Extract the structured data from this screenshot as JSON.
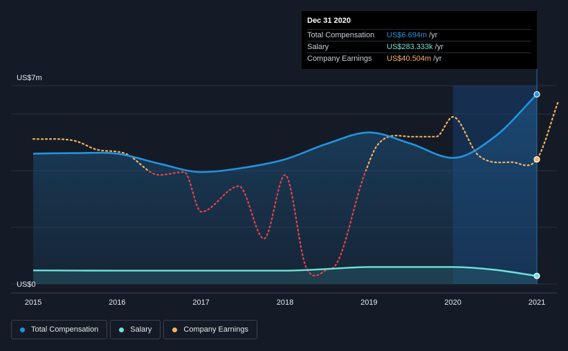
{
  "tooltip": {
    "date": "Dec 31 2020",
    "rows": [
      {
        "label": "Total Compensation",
        "value": "US$6.694m",
        "unit": "/yr",
        "color": "#2394df"
      },
      {
        "label": "Salary",
        "value": "US$283.333k",
        "unit": "/yr",
        "color": "#6fe3da"
      },
      {
        "label": "Company Earnings",
        "value": "US$40.504m",
        "unit": "/yr",
        "color": "#f5b461"
      }
    ]
  },
  "legend": [
    {
      "label": "Total Compensation",
      "color": "#2394df"
    },
    {
      "label": "Salary",
      "color": "#6fe3da"
    },
    {
      "label": "Company Earnings",
      "color": "#f5b461"
    }
  ],
  "chart_data": {
    "type": "line",
    "title": "",
    "xlabel": "",
    "ylabel": "",
    "y_axis_labels": [
      "US$7m",
      "US$0"
    ],
    "ylim": [
      0,
      7
    ],
    "x_tick_labels": [
      "2015",
      "2016",
      "2017",
      "2018",
      "2019",
      "2020",
      "2021"
    ],
    "xlim": [
      2015,
      2021.25
    ],
    "highlight_range": [
      2020,
      2021
    ],
    "series": [
      {
        "name": "Total Compensation",
        "color": "#2394df",
        "unit": "US$m",
        "x": [
          2015,
          2015.5,
          2016,
          2016.5,
          2017,
          2017.5,
          2018,
          2018.5,
          2019,
          2019.5,
          2020,
          2020.5,
          2021
        ],
        "y": [
          4.6,
          4.62,
          4.6,
          4.25,
          3.95,
          4.1,
          4.4,
          4.95,
          5.35,
          4.95,
          4.45,
          5.2,
          6.694
        ]
      },
      {
        "name": "Salary",
        "color": "#6fe3da",
        "unit": "US$m",
        "x": [
          2015,
          2016,
          2017,
          2018,
          2018.5,
          2019,
          2020,
          2020.5,
          2021
        ],
        "y": [
          0.48,
          0.47,
          0.47,
          0.47,
          0.53,
          0.6,
          0.6,
          0.5,
          0.283
        ]
      },
      {
        "name": "Company Earnings",
        "color": "#f5b461",
        "negative_color": "#e5434c",
        "unit": "US$m (scaled)",
        "x": [
          2015,
          2015.5,
          2015.75,
          2016.1,
          2016.5,
          2016.8,
          2017,
          2017.45,
          2017.75,
          2018,
          2018.25,
          2018.55,
          2018.95,
          2019.1,
          2019.5,
          2019.8,
          2020,
          2020.3,
          2020.7,
          2021,
          2021.25
        ],
        "y": [
          5.12,
          5.05,
          4.75,
          4.6,
          3.85,
          3.95,
          2.55,
          3.45,
          1.6,
          3.85,
          0.6,
          0.55,
          3.9,
          4.9,
          5.2,
          5.2,
          5.9,
          4.55,
          4.3,
          4.4,
          6.4
        ]
      }
    ]
  }
}
